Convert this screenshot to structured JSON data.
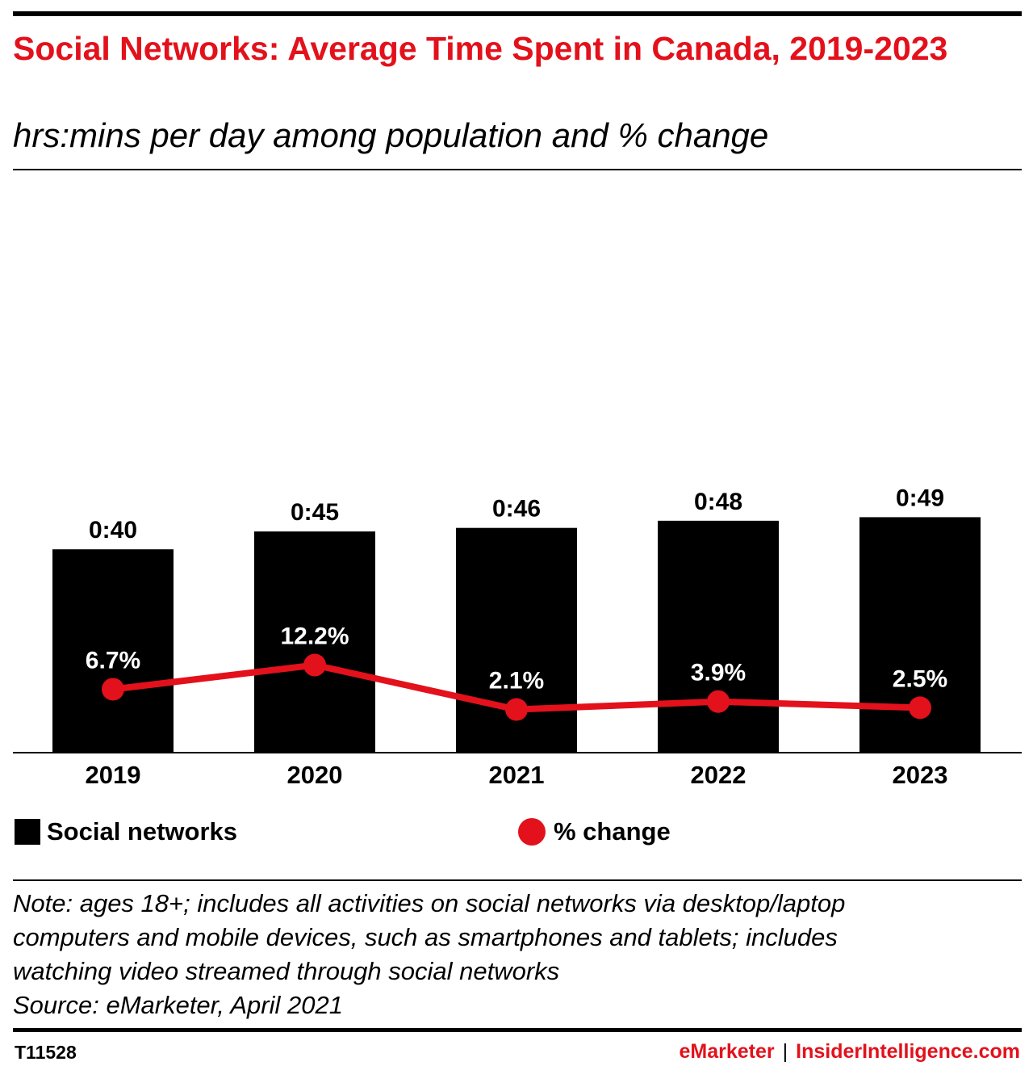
{
  "header": {
    "title": "Social Networks: Average Time Spent in Canada, 2019-2023",
    "subtitle": "hrs:mins per day among population and % change"
  },
  "chart_data": {
    "type": "bar",
    "categories": [
      "2019",
      "2020",
      "2021",
      "2022",
      "2023"
    ],
    "series": [
      {
        "name": "Social networks",
        "type": "bar",
        "values": [
          40,
          45,
          46,
          48,
          49
        ],
        "labels": [
          "0:40",
          "0:45",
          "0:46",
          "0:48",
          "0:49"
        ],
        "unit": "minutes per day",
        "color": "#000000"
      },
      {
        "name": "% change",
        "type": "line",
        "values": [
          6.7,
          12.2,
          2.1,
          3.9,
          2.5
        ],
        "labels": [
          "6.7%",
          "12.2%",
          "2.1%",
          "3.9%",
          "2.5%"
        ],
        "unit": "%",
        "color": "#e3111b"
      }
    ],
    "legend_position": "bottom",
    "grid": false
  },
  "legend": {
    "bar_label": "Social networks",
    "line_label": "% change"
  },
  "note": {
    "lines": [
      "Note: ages 18+; includes all activities on social networks via desktop/laptop",
      "computers and mobile devices, such as smartphones and tablets; includes",
      "watching video streamed through social networks",
      "Source: eMarketer, April 2021"
    ]
  },
  "footer": {
    "chart_id": "T11528",
    "brand_left": "eMarketer",
    "separator": "|",
    "brand_right": "InsiderIntelligence.com"
  },
  "colors": {
    "accent": "#e3111b",
    "bar": "#000000"
  }
}
